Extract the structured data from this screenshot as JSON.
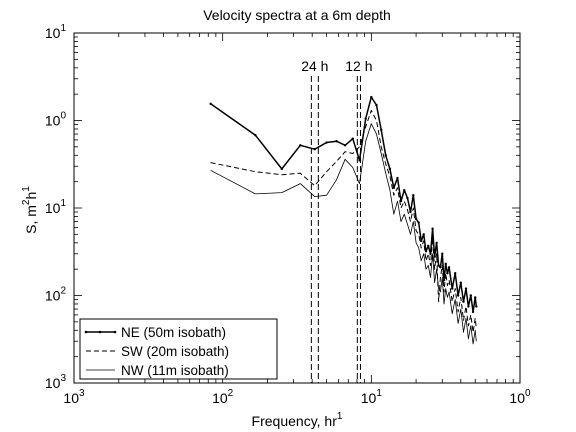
{
  "chart_data": {
    "type": "line",
    "title": "Velocity spectra at a 6m depth",
    "xlabel": {
      "main": "Frequency, hr",
      "sup": "1"
    },
    "ylabel": {
      "main": "S, m",
      "sup1": "2",
      "mid": "h",
      "sup2": "1"
    },
    "x_scale": "log",
    "y_scale": "log",
    "xlim": [
      0.001,
      1
    ],
    "ylim": [
      0.001,
      10
    ],
    "x_ticks": [
      {
        "base": "10",
        "exp": "3",
        "value": 0.001
      },
      {
        "base": "10",
        "exp": "2",
        "value": 0.01
      },
      {
        "base": "10",
        "exp": "1",
        "value": 0.1
      },
      {
        "base": "10",
        "exp": "0",
        "value": 1
      }
    ],
    "y_ticks": [
      {
        "base": "10",
        "exp": "3",
        "value": 0.001
      },
      {
        "base": "10",
        "exp": "2",
        "value": 0.01
      },
      {
        "base": "10",
        "exp": "1",
        "value": 0.1
      },
      {
        "base": "10",
        "exp": "0",
        "value": 1
      },
      {
        "base": "10",
        "exp": "1",
        "value": 10
      }
    ],
    "grid": false,
    "legend": "bottom-left",
    "annotations": [
      {
        "label": "24 h",
        "x": [
          0.0395,
          0.044
        ]
      },
      {
        "label": "12 h",
        "x": [
          0.0805,
          0.0845
        ]
      }
    ],
    "series": [
      {
        "name": "NE (50m isobath)",
        "style": "solid-marker",
        "points": [
          [
            0.0083,
            1.55
          ],
          [
            0.0166,
            0.68
          ],
          [
            0.025,
            0.28
          ],
          [
            0.0333,
            0.52
          ],
          [
            0.0416,
            0.47
          ],
          [
            0.05,
            0.56
          ],
          [
            0.0583,
            0.58
          ],
          [
            0.0666,
            0.52
          ],
          [
            0.075,
            0.62
          ],
          [
            0.0833,
            0.35
          ],
          [
            0.0916,
            1.05
          ],
          [
            0.1,
            1.85
          ],
          [
            0.1083,
            1.5
          ],
          [
            0.1166,
            0.78
          ],
          [
            0.125,
            0.4
          ],
          [
            0.1333,
            0.28
          ],
          [
            0.1416,
            0.17
          ],
          [
            0.15,
            0.22
          ],
          [
            0.1583,
            0.12
          ],
          [
            0.1666,
            0.16
          ],
          [
            0.175,
            0.13
          ],
          [
            0.1833,
            0.09
          ],
          [
            0.1916,
            0.14
          ],
          [
            0.2,
            0.075
          ],
          [
            0.2083,
            0.068
          ],
          [
            0.2166,
            0.042
          ],
          [
            0.225,
            0.05
          ],
          [
            0.2333,
            0.032
          ],
          [
            0.2416,
            0.037
          ],
          [
            0.25,
            0.03
          ],
          [
            0.2583,
            0.058
          ],
          [
            0.2666,
            0.028
          ],
          [
            0.275,
            0.04
          ],
          [
            0.2833,
            0.022
          ],
          [
            0.2916,
            0.021
          ],
          [
            0.3,
            0.03
          ],
          [
            0.3083,
            0.015
          ],
          [
            0.3166,
            0.023
          ],
          [
            0.325,
            0.018
          ],
          [
            0.3333,
            0.021
          ],
          [
            0.35,
            0.012
          ],
          [
            0.3666,
            0.018
          ],
          [
            0.3833,
            0.01
          ],
          [
            0.4,
            0.014
          ],
          [
            0.4166,
            0.0085
          ],
          [
            0.4333,
            0.012
          ],
          [
            0.45,
            0.0075
          ],
          [
            0.4666,
            0.01
          ],
          [
            0.4833,
            0.0065
          ],
          [
            0.5,
            0.0095
          ],
          [
            0.5083,
            0.0075
          ]
        ]
      },
      {
        "name": "SW (20m isobath)",
        "style": "dashed",
        "points": [
          [
            0.0083,
            0.33
          ],
          [
            0.0166,
            0.26
          ],
          [
            0.025,
            0.24
          ],
          [
            0.0333,
            0.25
          ],
          [
            0.0416,
            0.18
          ],
          [
            0.05,
            0.26
          ],
          [
            0.0583,
            0.34
          ],
          [
            0.0666,
            0.44
          ],
          [
            0.075,
            0.42
          ],
          [
            0.0833,
            0.5
          ],
          [
            0.0916,
            0.85
          ],
          [
            0.1,
            1.3
          ],
          [
            0.1083,
            1.0
          ],
          [
            0.1166,
            0.5
          ],
          [
            0.125,
            0.32
          ],
          [
            0.1333,
            0.23
          ],
          [
            0.1416,
            0.14
          ],
          [
            0.15,
            0.17
          ],
          [
            0.1583,
            0.1
          ],
          [
            0.1666,
            0.12
          ],
          [
            0.175,
            0.095
          ],
          [
            0.1833,
            0.07
          ],
          [
            0.1916,
            0.1
          ],
          [
            0.2,
            0.055
          ],
          [
            0.2083,
            0.05
          ],
          [
            0.2166,
            0.035
          ],
          [
            0.225,
            0.042
          ],
          [
            0.2333,
            0.025
          ],
          [
            0.2416,
            0.03
          ],
          [
            0.25,
            0.022
          ],
          [
            0.2583,
            0.045
          ],
          [
            0.2666,
            0.02
          ],
          [
            0.275,
            0.03
          ],
          [
            0.2833,
            0.0085
          ],
          [
            0.2916,
            0.016
          ],
          [
            0.3,
            0.022
          ],
          [
            0.3083,
            0.011
          ],
          [
            0.3166,
            0.018
          ],
          [
            0.325,
            0.013
          ],
          [
            0.3333,
            0.015
          ],
          [
            0.35,
            0.0085
          ],
          [
            0.3666,
            0.012
          ],
          [
            0.3833,
            0.0065
          ],
          [
            0.4,
            0.0095
          ],
          [
            0.4166,
            0.0052
          ],
          [
            0.4333,
            0.0075
          ],
          [
            0.45,
            0.0045
          ],
          [
            0.4666,
            0.006
          ],
          [
            0.4833,
            0.0038
          ],
          [
            0.5,
            0.0055
          ],
          [
            0.5083,
            0.0042
          ]
        ]
      },
      {
        "name": "NW (11m isobath)",
        "style": "solid",
        "points": [
          [
            0.0083,
            0.27
          ],
          [
            0.0166,
            0.145
          ],
          [
            0.025,
            0.15
          ],
          [
            0.0333,
            0.19
          ],
          [
            0.0416,
            0.135
          ],
          [
            0.05,
            0.14
          ],
          [
            0.0583,
            0.21
          ],
          [
            0.0666,
            0.36
          ],
          [
            0.075,
            0.29
          ],
          [
            0.0833,
            0.19
          ],
          [
            0.0916,
            0.58
          ],
          [
            0.1,
            0.92
          ],
          [
            0.1083,
            0.7
          ],
          [
            0.1166,
            0.42
          ],
          [
            0.125,
            0.25
          ],
          [
            0.1333,
            0.16
          ],
          [
            0.1416,
            0.085
          ],
          [
            0.15,
            0.12
          ],
          [
            0.1583,
            0.07
          ],
          [
            0.1666,
            0.085
          ],
          [
            0.175,
            0.065
          ],
          [
            0.1833,
            0.05
          ],
          [
            0.1916,
            0.07
          ],
          [
            0.2,
            0.04
          ],
          [
            0.2083,
            0.035
          ],
          [
            0.2166,
            0.025
          ],
          [
            0.225,
            0.03
          ],
          [
            0.2333,
            0.02
          ],
          [
            0.2416,
            0.022
          ],
          [
            0.25,
            0.016
          ],
          [
            0.2583,
            0.03
          ],
          [
            0.2666,
            0.014
          ],
          [
            0.275,
            0.02
          ],
          [
            0.2833,
            0.012
          ],
          [
            0.2916,
            0.011
          ],
          [
            0.3,
            0.016
          ],
          [
            0.3083,
            0.008
          ],
          [
            0.3166,
            0.012
          ],
          [
            0.325,
            0.0095
          ],
          [
            0.3333,
            0.011
          ],
          [
            0.35,
            0.0062
          ],
          [
            0.3666,
            0.009
          ],
          [
            0.3833,
            0.0048
          ],
          [
            0.4,
            0.007
          ],
          [
            0.4166,
            0.0038
          ],
          [
            0.4333,
            0.0055
          ],
          [
            0.45,
            0.0032
          ],
          [
            0.4666,
            0.0045
          ],
          [
            0.4833,
            0.0028
          ],
          [
            0.5,
            0.004
          ],
          [
            0.5083,
            0.003
          ]
        ]
      }
    ]
  }
}
